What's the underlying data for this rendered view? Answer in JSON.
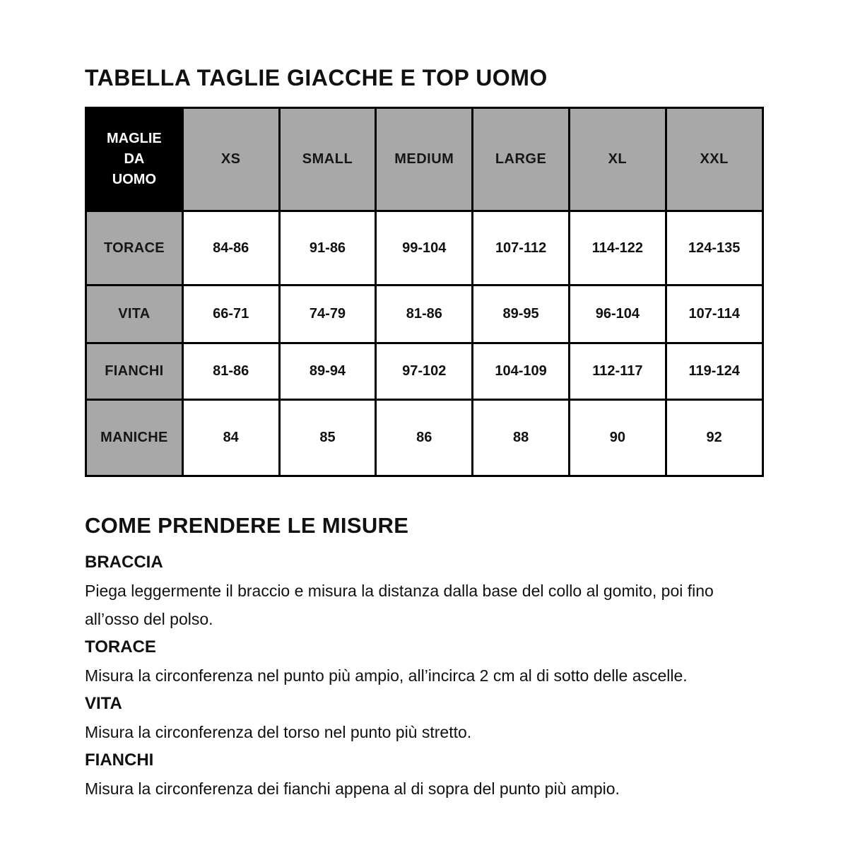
{
  "title": "TABELLA TAGLIE GIACCHE E TOP UOMO",
  "size_table": {
    "corner_label": "MAGLIE DA UOMO",
    "columns": [
      "XS",
      "SMALL",
      "MEDIUM",
      "LARGE",
      "XL",
      "XXL"
    ],
    "rows": [
      {
        "label": "TORACE",
        "values": [
          "84-86",
          "91-86",
          "99-104",
          "107-112",
          "114-122",
          "124-135"
        ]
      },
      {
        "label": "VITA",
        "values": [
          "66-71",
          "74-79",
          "81-86",
          "89-95",
          "96-104",
          "107-114"
        ]
      },
      {
        "label": "FIANCHI",
        "values": [
          "81-86",
          "89-94",
          "97-102",
          "104-109",
          "112-117",
          "119-124"
        ]
      },
      {
        "label": "MANICHE",
        "values": [
          "84",
          "85",
          "86",
          "88",
          "90",
          "92"
        ]
      }
    ]
  },
  "measure_section": {
    "heading": "COME PRENDERE LE MISURE",
    "items": [
      {
        "label": "BRACCIA",
        "text": "Piega leggermente il braccio e misura la distanza dalla base del collo al gomito, poi fino all’osso del polso."
      },
      {
        "label": "TORACE",
        "text": "Misura la circonferenza nel punto più ampio, all’incirca 2 cm al di sotto delle ascelle."
      },
      {
        "label": "VITA",
        "text": "Misura la circonferenza del torso nel punto più stretto."
      },
      {
        "label": "FIANCHI",
        "text": "Misura la circonferenza dei fianchi appena al di sopra del punto più ampio."
      }
    ]
  },
  "colors": {
    "corner_background": "#000000",
    "corner_text": "#ffffff",
    "cell_gray": "#a8a8a8",
    "border": "#000000",
    "text": "#111111",
    "background": "#ffffff"
  }
}
